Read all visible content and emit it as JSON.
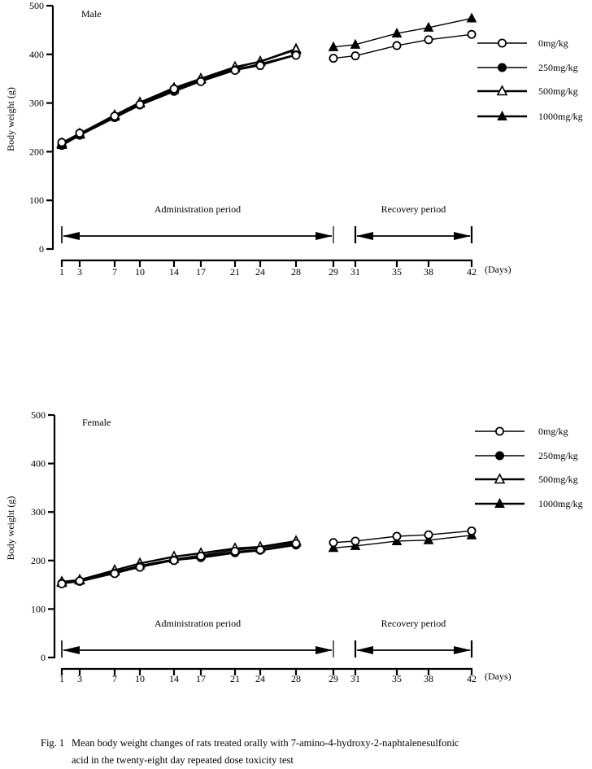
{
  "chart_data": [
    {
      "type": "line",
      "panel": "Male",
      "title": "Male",
      "xlabel": "(Days)",
      "ylabel": "Body weight (g)",
      "ylim": [
        0,
        500
      ],
      "yticks": [
        0,
        100,
        200,
        300,
        400,
        500
      ],
      "x_tick_labels": [
        "1",
        "3",
        "7",
        "10",
        "14",
        "17",
        "21",
        "24",
        "28",
        "29",
        "31",
        "35",
        "38",
        "42"
      ],
      "grid": false,
      "legend_position": "right",
      "periods": [
        {
          "label": "Administration period",
          "from_day": 1,
          "to_day": 29
        },
        {
          "label": "Recovery period",
          "from_day": 31,
          "to_day": 42
        }
      ],
      "administration_days": [
        1,
        3,
        7,
        10,
        14,
        17,
        21,
        24,
        28
      ],
      "recovery_days": [
        29,
        31,
        35,
        38,
        42
      ],
      "series": [
        {
          "name": "0mg/kg",
          "marker": "open-circle",
          "administration": [
            219,
            238,
            273,
            297,
            329,
            344,
            367,
            377,
            398
          ],
          "recovery": [
            392,
            397,
            418,
            430,
            441
          ]
        },
        {
          "name": "250mg/kg",
          "marker": "filled-circle",
          "administration": [
            213,
            234,
            270,
            296,
            324,
            345,
            368,
            380,
            399
          ],
          "recovery": null
        },
        {
          "name": "500mg/kg",
          "marker": "open-triangle",
          "administration": [
            217,
            237,
            275,
            301,
            331,
            350,
            374,
            385,
            410
          ],
          "recovery": null
        },
        {
          "name": "1000mg/kg",
          "marker": "filled-triangle",
          "administration": [
            214,
            235,
            272,
            299,
            327,
            348,
            371,
            386,
            412
          ],
          "recovery": [
            415,
            420,
            443,
            455,
            474
          ]
        }
      ]
    },
    {
      "type": "line",
      "panel": "Female",
      "title": "Female",
      "xlabel": "(Days)",
      "ylabel": "Body weight (g)",
      "ylim": [
        0,
        500
      ],
      "yticks": [
        0,
        100,
        200,
        300,
        400,
        500
      ],
      "x_tick_labels": [
        "1",
        "3",
        "7",
        "10",
        "14",
        "17",
        "21",
        "24",
        "28",
        "29",
        "31",
        "35",
        "38",
        "42"
      ],
      "grid": false,
      "legend_position": "top-right",
      "periods": [
        {
          "label": "Administration period",
          "from_day": 1,
          "to_day": 29
        },
        {
          "label": "Recovery period",
          "from_day": 31,
          "to_day": 42
        }
      ],
      "administration_days": [
        1,
        3,
        7,
        10,
        14,
        17,
        21,
        24,
        28
      ],
      "recovery_days": [
        29,
        31,
        35,
        38,
        42
      ],
      "series": [
        {
          "name": "0mg/kg",
          "marker": "open-circle",
          "administration": [
            152,
            158,
            173,
            186,
            200,
            209,
            219,
            222,
            235
          ],
          "recovery": [
            237,
            240,
            250,
            253,
            261
          ]
        },
        {
          "name": "250mg/kg",
          "marker": "filled-circle",
          "administration": [
            153,
            157,
            174,
            188,
            201,
            206,
            216,
            221,
            232
          ],
          "recovery": null
        },
        {
          "name": "500mg/kg",
          "marker": "open-triangle",
          "administration": [
            156,
            160,
            180,
            194,
            208,
            215,
            225,
            228,
            240
          ],
          "recovery": null
        },
        {
          "name": "1000mg/kg",
          "marker": "filled-triangle",
          "administration": [
            154,
            159,
            177,
            190,
            203,
            211,
            222,
            225,
            237
          ],
          "recovery": [
            226,
            230,
            240,
            242,
            252
          ]
        }
      ]
    }
  ],
  "caption": {
    "fig_label": "Fig. 1",
    "line1": "Mean body weight changes of rats treated orally with 7-amino-4-hydroxy-2-naphtalenesulfonic",
    "line2": "acid in the twenty-eight day repeated dose toxicity test"
  }
}
